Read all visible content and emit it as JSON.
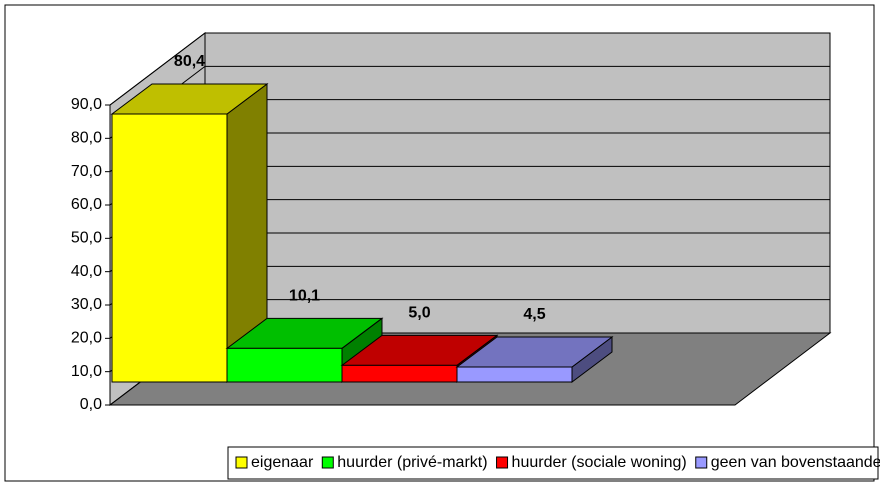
{
  "chart_data": {
    "type": "bar3d",
    "series": [
      {
        "name": "eigenaar",
        "color": "#ffff00",
        "values": [
          80.4
        ],
        "value_labels": [
          "80,4"
        ]
      },
      {
        "name": "huurder (privé-markt)",
        "color": "#00ff00",
        "values": [
          10.1
        ],
        "value_labels": [
          "10,1"
        ]
      },
      {
        "name": "huurder (sociale woning)",
        "color": "#ff0000",
        "values": [
          5.0
        ],
        "value_labels": [
          "5,0"
        ]
      },
      {
        "name": "geen van bovenstaande",
        "color": "#9999ff",
        "values": [
          4.5
        ],
        "value_labels": [
          "4,5"
        ]
      }
    ],
    "ylim": [
      0,
      90
    ],
    "yticks": [
      {
        "value": 0,
        "label": "0,0"
      },
      {
        "value": 10,
        "label": "10,0"
      },
      {
        "value": 20,
        "label": "20,0"
      },
      {
        "value": 30,
        "label": "30,0"
      },
      {
        "value": 40,
        "label": "40,0"
      },
      {
        "value": 50,
        "label": "50,0"
      },
      {
        "value": 60,
        "label": "60,0"
      },
      {
        "value": 70,
        "label": "70,0"
      },
      {
        "value": 80,
        "label": "80,0"
      },
      {
        "value": 90,
        "label": "90,0"
      }
    ],
    "grid": true,
    "legend": "bottom"
  }
}
